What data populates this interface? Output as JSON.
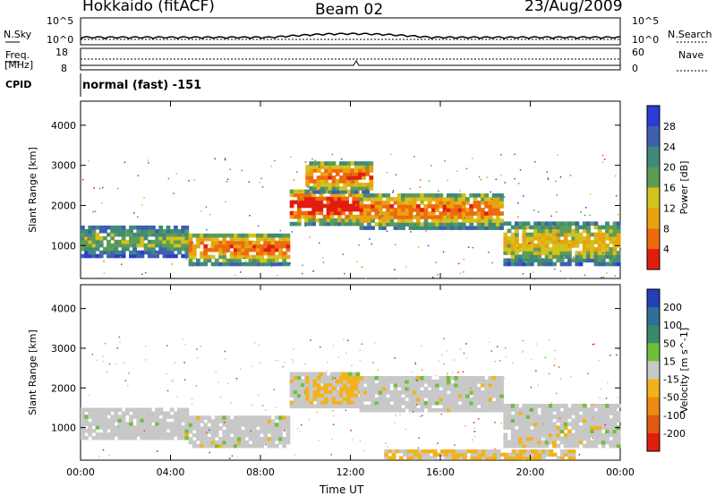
{
  "header": {
    "station": "Hokkaido (fitACF)",
    "beam": "Beam 02",
    "date": "23/Aug/2009"
  },
  "strip": {
    "nsky_label": "N.Sky",
    "nsearch_label": "N.Search",
    "freq_label_1": "Freq.",
    "freq_label_2": "[MHz]",
    "nave_label": "Nave",
    "cpid_label": "CPID",
    "cpid_value": "normal (fast) -151",
    "nsky_ticks": [
      "10^5",
      "10^0"
    ],
    "nsearch_ticks": [
      "10^5",
      "10^0"
    ],
    "freq_ticks": [
      "18",
      "8"
    ],
    "nave_ticks": [
      "60",
      "0"
    ]
  },
  "chart_data": [
    {
      "type": "heatmap",
      "title": "",
      "quantity": "Power",
      "ylabel": "Slant Range [km]",
      "xlabel": "Time UT",
      "x_ticks": [
        "00:00",
        "04:00",
        "08:00",
        "12:00",
        "16:00",
        "20:00",
        "00:00"
      ],
      "y_ticks": [
        "1000",
        "2000",
        "3000",
        "4000"
      ],
      "ylim": [
        180,
        4600
      ],
      "xlim_hours": [
        0,
        24
      ],
      "colorbar": {
        "label": "Power [dB]",
        "ticks": [
          "4",
          "8",
          "12",
          "16",
          "20",
          "24",
          "28"
        ],
        "colors": [
          "#2a3bd6",
          "#3e5fae",
          "#3f8a7c",
          "#5c9c57",
          "#d4c21d",
          "#e8a30f",
          "#ef6a0c",
          "#e21d0f"
        ]
      },
      "regions": [
        {
          "t0": 0.0,
          "t1": 4.8,
          "r0": 700,
          "r1": 1500,
          "level": 3
        },
        {
          "t0": 4.8,
          "t1": 9.3,
          "r0": 500,
          "r1": 1300,
          "level": 5
        },
        {
          "t0": 9.3,
          "t1": 12.4,
          "r0": 1500,
          "r1": 2400,
          "level": 6
        },
        {
          "t0": 10.0,
          "t1": 13.0,
          "r0": 2300,
          "r1": 3100,
          "level": 5
        },
        {
          "t0": 12.4,
          "t1": 18.8,
          "r0": 1400,
          "r1": 2300,
          "level": 5
        },
        {
          "t0": 18.8,
          "t1": 24.0,
          "r0": 500,
          "r1": 1600,
          "level": 4
        }
      ]
    },
    {
      "type": "heatmap",
      "title": "",
      "quantity": "Velocity",
      "ylabel": "Slant Range [km]",
      "xlabel": "Time UT",
      "x_ticks": [
        "00:00",
        "04:00",
        "08:00",
        "12:00",
        "16:00",
        "20:00",
        "00:00"
      ],
      "y_ticks": [
        "1000",
        "2000",
        "3000",
        "4000"
      ],
      "ylim": [
        180,
        4600
      ],
      "xlim_hours": [
        0,
        24
      ],
      "colorbar": {
        "label": "Velocity [m s^-1]",
        "ticks": [
          "200",
          "100",
          "50",
          "15",
          "-15",
          "-50",
          "-100",
          "-200"
        ],
        "colors": [
          "#2240b8",
          "#2f6f9a",
          "#3a8a6a",
          "#6fbf3a",
          "#c8c8c8",
          "#f2b21a",
          "#ee8a10",
          "#e25a10",
          "#e21d0f"
        ]
      },
      "regions": [
        {
          "t0": 0.0,
          "t1": 4.8,
          "r0": 700,
          "r1": 1500,
          "level": "ground"
        },
        {
          "t0": 4.8,
          "t1": 9.3,
          "r0": 500,
          "r1": 1300,
          "level": "ground"
        },
        {
          "t0": 9.3,
          "t1": 12.4,
          "r0": 1500,
          "r1": 2400,
          "level": "ground"
        },
        {
          "t0": 10.0,
          "t1": 12.5,
          "r0": 1600,
          "r1": 2300,
          "level": "negative"
        },
        {
          "t0": 12.4,
          "t1": 18.8,
          "r0": 1400,
          "r1": 2300,
          "level": "ground"
        },
        {
          "t0": 18.8,
          "t1": 24.0,
          "r0": 500,
          "r1": 1600,
          "level": "ground"
        },
        {
          "t0": 13.5,
          "t1": 22.0,
          "r0": 200,
          "r1": 450,
          "level": "negative"
        }
      ]
    }
  ]
}
